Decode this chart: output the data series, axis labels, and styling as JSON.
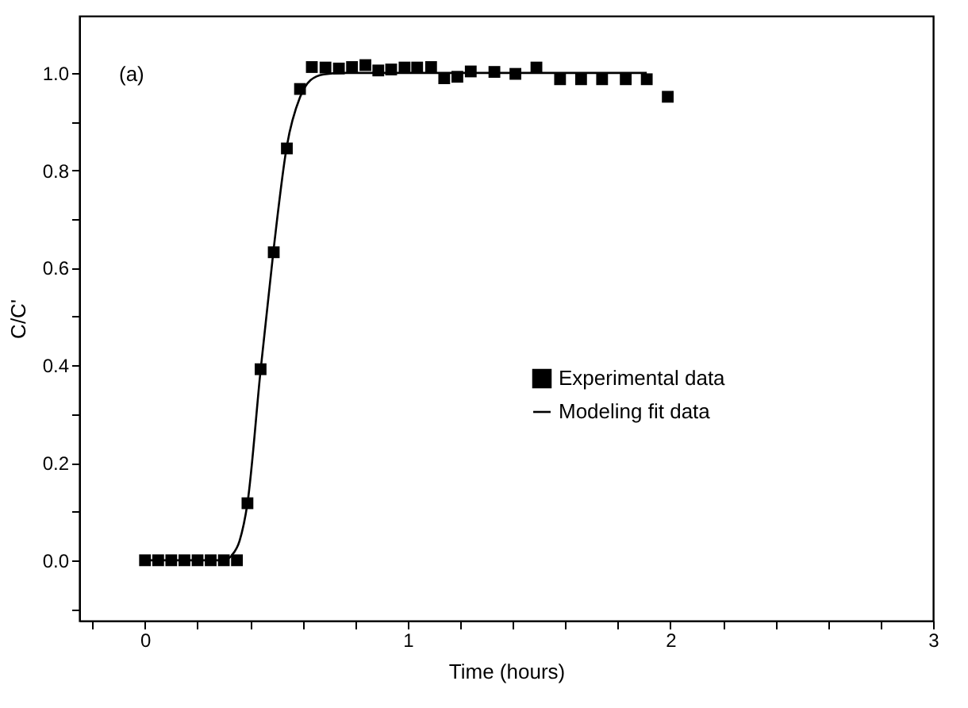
{
  "chart_data": {
    "type": "scatter",
    "xlabel": "Time (hours)",
    "ylabel": "C/C'",
    "annotations": [
      "(a)"
    ],
    "legend": "right",
    "grid": false,
    "xlim": [
      -0.25,
      3
    ],
    "ylim": [
      -0.124,
      1.117
    ],
    "xticks": [
      {
        "value": -0.2,
        "label": null
      },
      0,
      {
        "value": 0.2,
        "label": null
      },
      {
        "value": 0.4,
        "label": null
      },
      {
        "value": 0.6,
        "label": null
      },
      {
        "value": 0.8,
        "label": null
      },
      1,
      {
        "value": 1.2,
        "label": null
      },
      {
        "value": 1.4,
        "label": null
      },
      {
        "value": 1.6,
        "label": null
      },
      {
        "value": 1.8,
        "label": null
      },
      2,
      {
        "value": 2.2,
        "label": null
      },
      {
        "value": 2.4,
        "label": null
      },
      {
        "value": 2.6,
        "label": null
      },
      {
        "value": 2.8,
        "label": null
      },
      3
    ],
    "yticks": [
      {
        "value": -0.1,
        "label": null
      },
      {
        "value": 0,
        "label": "0.0"
      },
      {
        "value": 0.1,
        "label": null
      },
      {
        "value": 0.2,
        "label": "0.2"
      },
      {
        "value": 0.3,
        "label": null
      },
      {
        "value": 0.4,
        "label": "0.4"
      },
      {
        "value": 0.5,
        "label": null
      },
      {
        "value": 0.6,
        "label": "0.6"
      },
      {
        "value": 0.7,
        "label": null
      },
      {
        "value": 0.8,
        "label": "0.8"
      },
      {
        "value": 0.9,
        "label": null
      },
      {
        "value": 1,
        "label": "1.0"
      }
    ],
    "series": [
      {
        "name": "Experimental data",
        "marker": "square",
        "color": "#000000",
        "x": [
          0,
          0.05,
          0.1,
          0.15,
          0.2,
          0.25,
          0.3,
          0.35,
          0.39,
          0.44,
          0.49,
          0.54,
          0.59,
          0.635,
          0.687,
          0.738,
          0.788,
          0.839,
          0.888,
          0.937,
          0.988,
          1.036,
          1.089,
          1.139,
          1.189,
          1.24,
          1.33,
          1.41,
          1.49,
          1.58,
          1.66,
          1.74,
          1.83,
          1.91,
          1.99
        ],
        "values": [
          0,
          0,
          0,
          0,
          0,
          0,
          0,
          0,
          0.117,
          0.392,
          0.632,
          0.845,
          0.967,
          1.012,
          1.011,
          1.009,
          1.012,
          1.016,
          1.005,
          1.007,
          1.011,
          1.011,
          1.012,
          0.989,
          0.992,
          1.003,
          1.002,
          0.998,
          1.011,
          0.987,
          0.987,
          0.987,
          0.987,
          0.987,
          0.951
        ]
      },
      {
        "name": "Modeling fit data",
        "type": "line",
        "line_style": "solid",
        "marker": "none",
        "color": "#000000",
        "x": [
          0,
          0.3,
          0.33,
          0.36,
          0.39,
          0.44,
          0.49,
          0.54,
          0.59,
          0.63,
          0.68,
          0.75,
          0.85,
          1.0,
          1.5,
          1.91
        ],
        "values": [
          0,
          0,
          0.01,
          0.04,
          0.117,
          0.39,
          0.64,
          0.85,
          0.95,
          0.985,
          0.997,
          1.0,
          1.0,
          1.0,
          1.0,
          1.0
        ]
      }
    ]
  }
}
